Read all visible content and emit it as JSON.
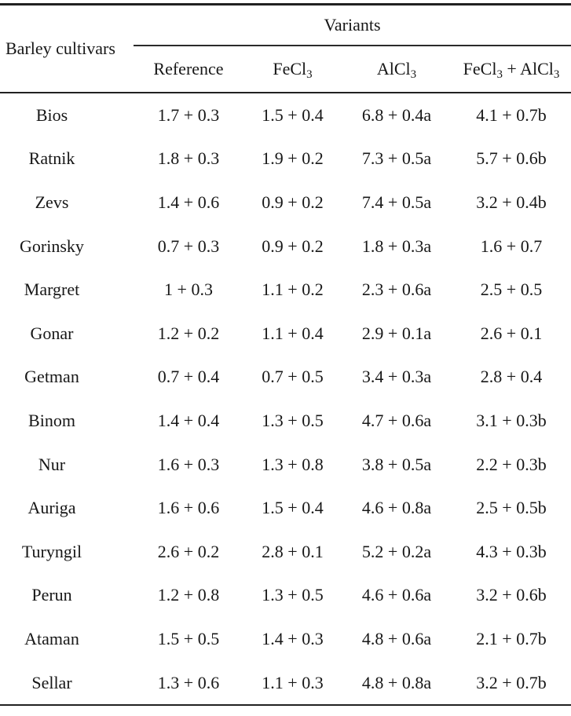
{
  "table": {
    "row_header": "Barley cultivars",
    "group_header": "Variants",
    "columns": [
      {
        "name": "Reference",
        "segments": [
          {
            "t": "Reference"
          }
        ]
      },
      {
        "name": "FeCl3",
        "segments": [
          {
            "t": "FeCl"
          },
          {
            "sub": "3"
          }
        ]
      },
      {
        "name": "AlCl3",
        "segments": [
          {
            "t": "AlCl"
          },
          {
            "sub": "3"
          }
        ]
      },
      {
        "name": "FeCl3 + AlCl3",
        "segments": [
          {
            "t": "FeCl"
          },
          {
            "sub": "3"
          },
          {
            "t": " + AlCl"
          },
          {
            "sub": "3"
          }
        ]
      }
    ],
    "rows": [
      {
        "cultivar": "Bios",
        "values": [
          "1.7 + 0.3",
          "1.5 + 0.4",
          "6.8 + 0.4a",
          "4.1 + 0.7b"
        ]
      },
      {
        "cultivar": "Ratnik",
        "values": [
          "1.8 + 0.3",
          "1.9 + 0.2",
          "7.3 + 0.5a",
          "5.7 + 0.6b"
        ]
      },
      {
        "cultivar": "Zevs",
        "values": [
          "1.4 + 0.6",
          "0.9 + 0.2",
          "7.4 + 0.5a",
          "3.2 + 0.4b"
        ]
      },
      {
        "cultivar": "Gorinsky",
        "values": [
          "0.7 + 0.3",
          "0.9 + 0.2",
          "1.8 + 0.3a",
          "1.6 + 0.7"
        ]
      },
      {
        "cultivar": "Margret",
        "values": [
          "1 + 0.3",
          "1.1 + 0.2",
          "2.3 + 0.6a",
          "2.5 + 0.5"
        ]
      },
      {
        "cultivar": "Gonar",
        "values": [
          "1.2 + 0.2",
          "1.1 + 0.4",
          "2.9 + 0.1a",
          "2.6 + 0.1"
        ]
      },
      {
        "cultivar": "Getman",
        "values": [
          "0.7 + 0.4",
          "0.7 + 0.5",
          "3.4 + 0.3a",
          "2.8 + 0.4"
        ]
      },
      {
        "cultivar": "Binom",
        "values": [
          "1.4 + 0.4",
          "1.3 + 0.5",
          "4.7 + 0.6a",
          "3.1 + 0.3b"
        ]
      },
      {
        "cultivar": "Nur",
        "values": [
          "1.6 + 0.3",
          "1.3 + 0.8",
          "3.8 + 0.5a",
          "2.2 + 0.3b"
        ]
      },
      {
        "cultivar": "Auriga",
        "values": [
          "1.6 + 0.6",
          "1.5 + 0.4",
          "4.6 + 0.8a",
          "2.5 + 0.5b"
        ]
      },
      {
        "cultivar": "Turyngil",
        "values": [
          "2.6 + 0.2",
          "2.8 + 0.1",
          "5.2 + 0.2a",
          "4.3 + 0.3b"
        ]
      },
      {
        "cultivar": "Perun",
        "values": [
          "1.2 + 0.8",
          "1.3 + 0.5",
          "4.6 + 0.6a",
          "3.2 + 0.6b"
        ]
      },
      {
        "cultivar": "Ataman",
        "values": [
          "1.5 + 0.5",
          "1.4 + 0.3",
          "4.8 + 0.6a",
          "2.1 + 0.7b"
        ]
      },
      {
        "cultivar": "Sellar",
        "values": [
          "1.3 + 0.6",
          "1.1 + 0.3",
          "4.8 + 0.8a",
          "3.2 + 0.7b"
        ]
      }
    ],
    "colors": {
      "rule": "#212121",
      "text": "#171717",
      "background": "#ffffff"
    }
  }
}
